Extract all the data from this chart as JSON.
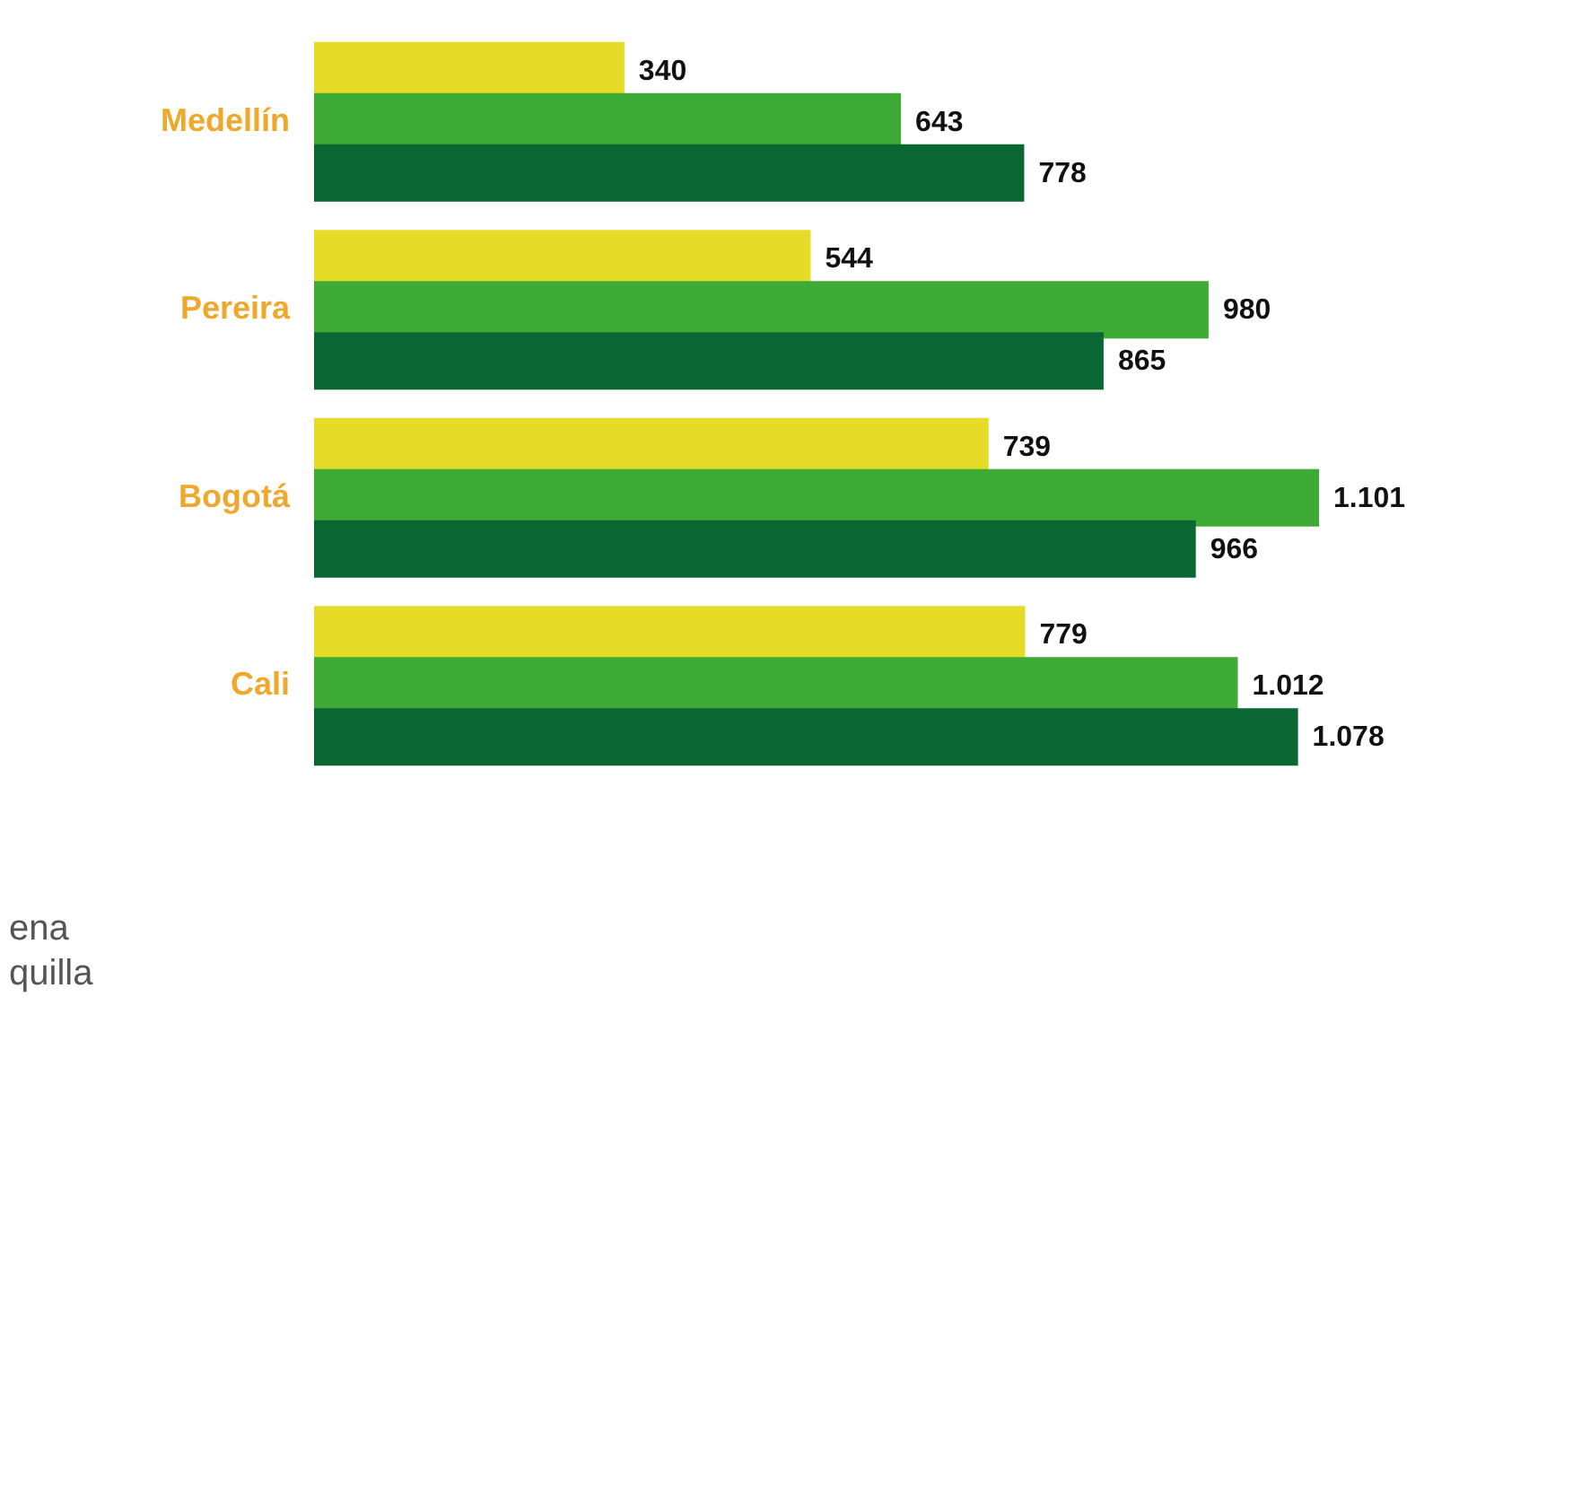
{
  "chart_data": {
    "type": "bar",
    "orientation": "horizontal",
    "categories": [
      "Medellín",
      "Pereira",
      "Bogotá",
      "Cali"
    ],
    "series": [
      {
        "color": "#e6dc28",
        "values": [
          340,
          544,
          739,
          779
        ],
        "value_labels": [
          "340",
          "544",
          "739",
          "779"
        ]
      },
      {
        "color": "#3dab35",
        "values": [
          643,
          980,
          1101,
          1012
        ],
        "value_labels": [
          "643",
          "980",
          "1.101",
          "1.012"
        ]
      },
      {
        "color": "#0a6633",
        "values": [
          778,
          865,
          966,
          1078
        ],
        "value_labels": [
          "778",
          "865",
          "966",
          "1.078"
        ]
      }
    ],
    "annotations": [
      "ena",
      "quilla"
    ],
    "grid": false,
    "legend": false
  }
}
